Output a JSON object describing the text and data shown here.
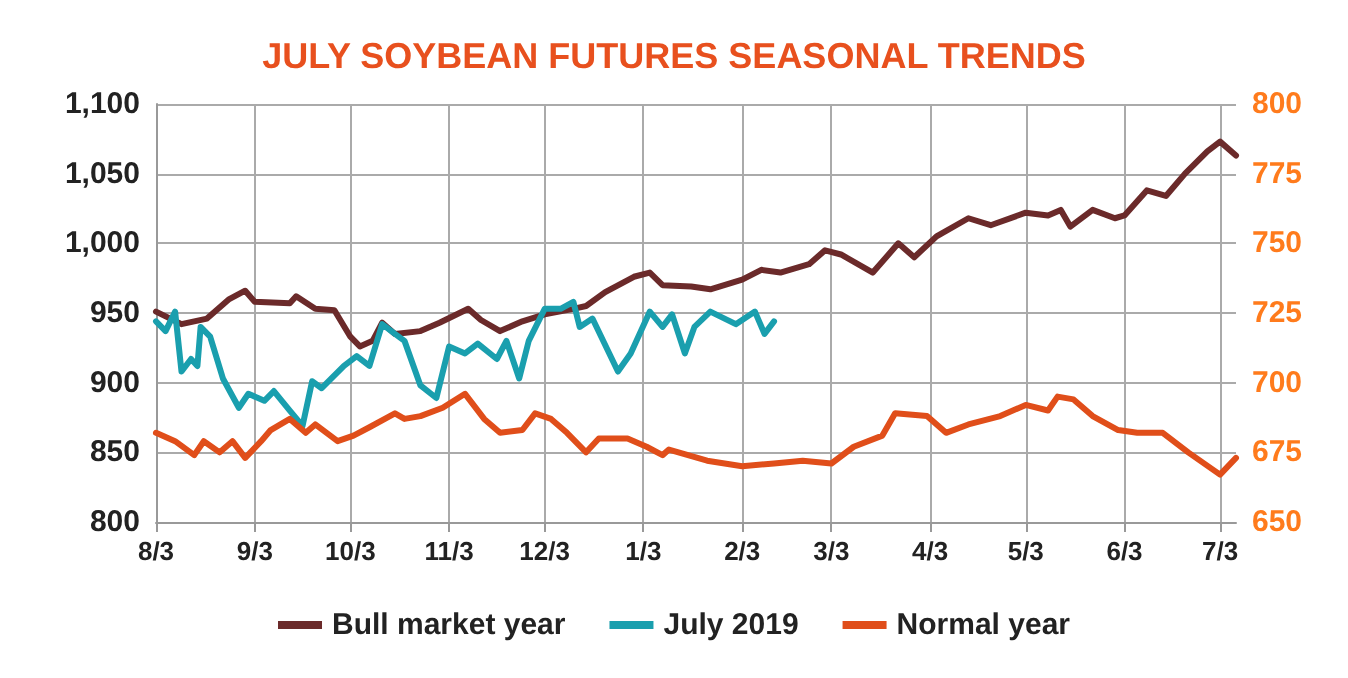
{
  "chart_data": {
    "type": "line",
    "title": "JULY SOYBEAN FUTURES SEASONAL TRENDS",
    "xlim": [
      "2018-08-03",
      "2019-07-08"
    ],
    "xticks": [
      {
        "value": "2018-08-03",
        "label": "8/3"
      },
      {
        "value": "2018-09-03",
        "label": "9/3"
      },
      {
        "value": "2018-10-03",
        "label": "10/3"
      },
      {
        "value": "2018-11-03",
        "label": "11/3"
      },
      {
        "value": "2018-12-03",
        "label": "12/3"
      },
      {
        "value": "2019-01-03",
        "label": "1/3"
      },
      {
        "value": "2019-02-03",
        "label": "2/3"
      },
      {
        "value": "2019-03-03",
        "label": "3/3"
      },
      {
        "value": "2019-04-03",
        "label": "4/3"
      },
      {
        "value": "2019-05-03",
        "label": "5/3"
      },
      {
        "value": "2019-06-03",
        "label": "6/3"
      },
      {
        "value": "2019-07-03",
        "label": "7/3"
      }
    ],
    "ylim": [
      800,
      1100
    ],
    "yticks": [
      800,
      850,
      900,
      950,
      {
        "value": 1000,
        "label": "1,000"
      },
      {
        "value": 1050,
        "label": "1,050"
      },
      {
        "value": 1100,
        "label": "1,100"
      }
    ],
    "y2lim": [
      650,
      800
    ],
    "y2ticks": [
      650,
      675,
      700,
      725,
      750,
      775,
      800
    ],
    "grid": true,
    "legend": "bottom",
    "series": [
      {
        "name": "Bull market year",
        "color": "#6b2a2a",
        "x": [
          "2018-08-03",
          "2018-08-11",
          "2018-08-19",
          "2018-08-26",
          "2018-08-31",
          "2018-09-03",
          "2018-09-14",
          "2018-09-16",
          "2018-09-22",
          "2018-09-28",
          "2018-10-03",
          "2018-10-06",
          "2018-10-10",
          "2018-10-13",
          "2018-10-17",
          "2018-10-25",
          "2018-10-31",
          "2018-11-09",
          "2018-11-13",
          "2018-11-19",
          "2018-11-26",
          "2018-12-03",
          "2018-12-12",
          "2018-12-16",
          "2018-12-22",
          "2018-12-31",
          "2019-01-05",
          "2019-01-09",
          "2019-01-18",
          "2019-01-24",
          "2019-02-03",
          "2019-02-09",
          "2019-02-15",
          "2019-02-24",
          "2019-03-01",
          "2019-03-06",
          "2019-03-16",
          "2019-03-24",
          "2019-03-29",
          "2019-04-05",
          "2019-04-15",
          "2019-04-22",
          "2019-05-03",
          "2019-05-10",
          "2019-05-14",
          "2019-05-17",
          "2019-05-24",
          "2019-05-31",
          "2019-06-03",
          "2019-06-10",
          "2019-06-16",
          "2019-06-22",
          "2019-06-29",
          "2019-07-03",
          "2019-07-08"
        ],
        "values": [
          951,
          942,
          946,
          960,
          966,
          958,
          957,
          962,
          953,
          952,
          933,
          926,
          930,
          943,
          935,
          937,
          943,
          953,
          945,
          937,
          944,
          949,
          953,
          955,
          965,
          976,
          979,
          970,
          969,
          967,
          974,
          981,
          979,
          985,
          995,
          992,
          979,
          1000,
          990,
          1005,
          1018,
          1013,
          1022,
          1020,
          1024,
          1012,
          1024,
          1018,
          1020,
          1038,
          1034,
          1050,
          1066,
          1073,
          1063
        ]
      },
      {
        "name": "July 2019",
        "color": "#1a9fae",
        "x": [
          "2018-08-03",
          "2018-08-06",
          "2018-08-09",
          "2018-08-11",
          "2018-08-14",
          "2018-08-16",
          "2018-08-17",
          "2018-08-20",
          "2018-08-24",
          "2018-08-29",
          "2018-09-01",
          "2018-09-06",
          "2018-09-09",
          "2018-09-14",
          "2018-09-18",
          "2018-09-21",
          "2018-09-24",
          "2018-10-01",
          "2018-10-05",
          "2018-10-09",
          "2018-10-13",
          "2018-10-17",
          "2018-10-20",
          "2018-10-25",
          "2018-10-30",
          "2018-11-03",
          "2018-11-08",
          "2018-11-12",
          "2018-11-18",
          "2018-11-21",
          "2018-11-25",
          "2018-11-28",
          "2018-12-03",
          "2018-12-08",
          "2018-12-12",
          "2018-12-14",
          "2018-12-18",
          "2018-12-26",
          "2018-12-30",
          "2019-01-05",
          "2019-01-09",
          "2019-01-12",
          "2019-01-16",
          "2019-01-19",
          "2019-01-24",
          "2019-02-01",
          "2019-02-07",
          "2019-02-10",
          "2019-02-13"
        ],
        "values": [
          944,
          937,
          951,
          908,
          917,
          912,
          940,
          933,
          903,
          882,
          892,
          887,
          894,
          880,
          869,
          901,
          896,
          912,
          919,
          912,
          942,
          935,
          930,
          898,
          889,
          926,
          921,
          928,
          917,
          930,
          903,
          930,
          953,
          953,
          958,
          940,
          946,
          908,
          921,
          951,
          940,
          949,
          921,
          940,
          951,
          942,
          951,
          935,
          944
        ]
      },
      {
        "name": "Normal year",
        "color": "#e04e1a",
        "axis": "y2",
        "x": [
          "2018-08-03",
          "2018-08-09",
          "2018-08-15",
          "2018-08-18",
          "2018-08-23",
          "2018-08-27",
          "2018-08-31",
          "2018-09-05",
          "2018-09-08",
          "2018-09-14",
          "2018-09-19",
          "2018-09-22",
          "2018-09-29",
          "2018-10-04",
          "2018-10-09",
          "2018-10-17",
          "2018-10-20",
          "2018-10-25",
          "2018-11-01",
          "2018-11-08",
          "2018-11-14",
          "2018-11-19",
          "2018-11-26",
          "2018-11-30",
          "2018-12-05",
          "2018-12-10",
          "2018-12-16",
          "2018-12-20",
          "2018-12-29",
          "2019-01-04",
          "2019-01-09",
          "2019-01-11",
          "2019-01-23",
          "2019-02-03",
          "2019-02-13",
          "2019-02-22",
          "2019-03-03",
          "2019-03-10",
          "2019-03-19",
          "2019-03-23",
          "2019-04-02",
          "2019-04-08",
          "2019-04-15",
          "2019-04-25",
          "2019-05-03",
          "2019-05-10",
          "2019-05-13",
          "2019-05-18",
          "2019-05-24",
          "2019-06-01",
          "2019-06-07",
          "2019-06-15",
          "2019-06-23",
          "2019-07-03",
          "2019-07-08"
        ],
        "values": [
          682,
          679,
          674,
          679,
          675,
          679,
          673,
          679,
          683,
          687,
          682,
          685,
          679,
          681,
          684,
          689,
          687,
          688,
          691,
          696,
          687,
          682,
          683,
          689,
          687,
          682,
          675,
          680,
          680,
          677,
          674,
          676,
          672,
          670,
          671,
          672,
          671,
          677,
          681,
          689,
          688,
          682,
          685,
          688,
          692,
          690,
          695,
          694,
          688,
          683,
          682,
          682,
          675,
          667,
          673
        ]
      }
    ]
  }
}
